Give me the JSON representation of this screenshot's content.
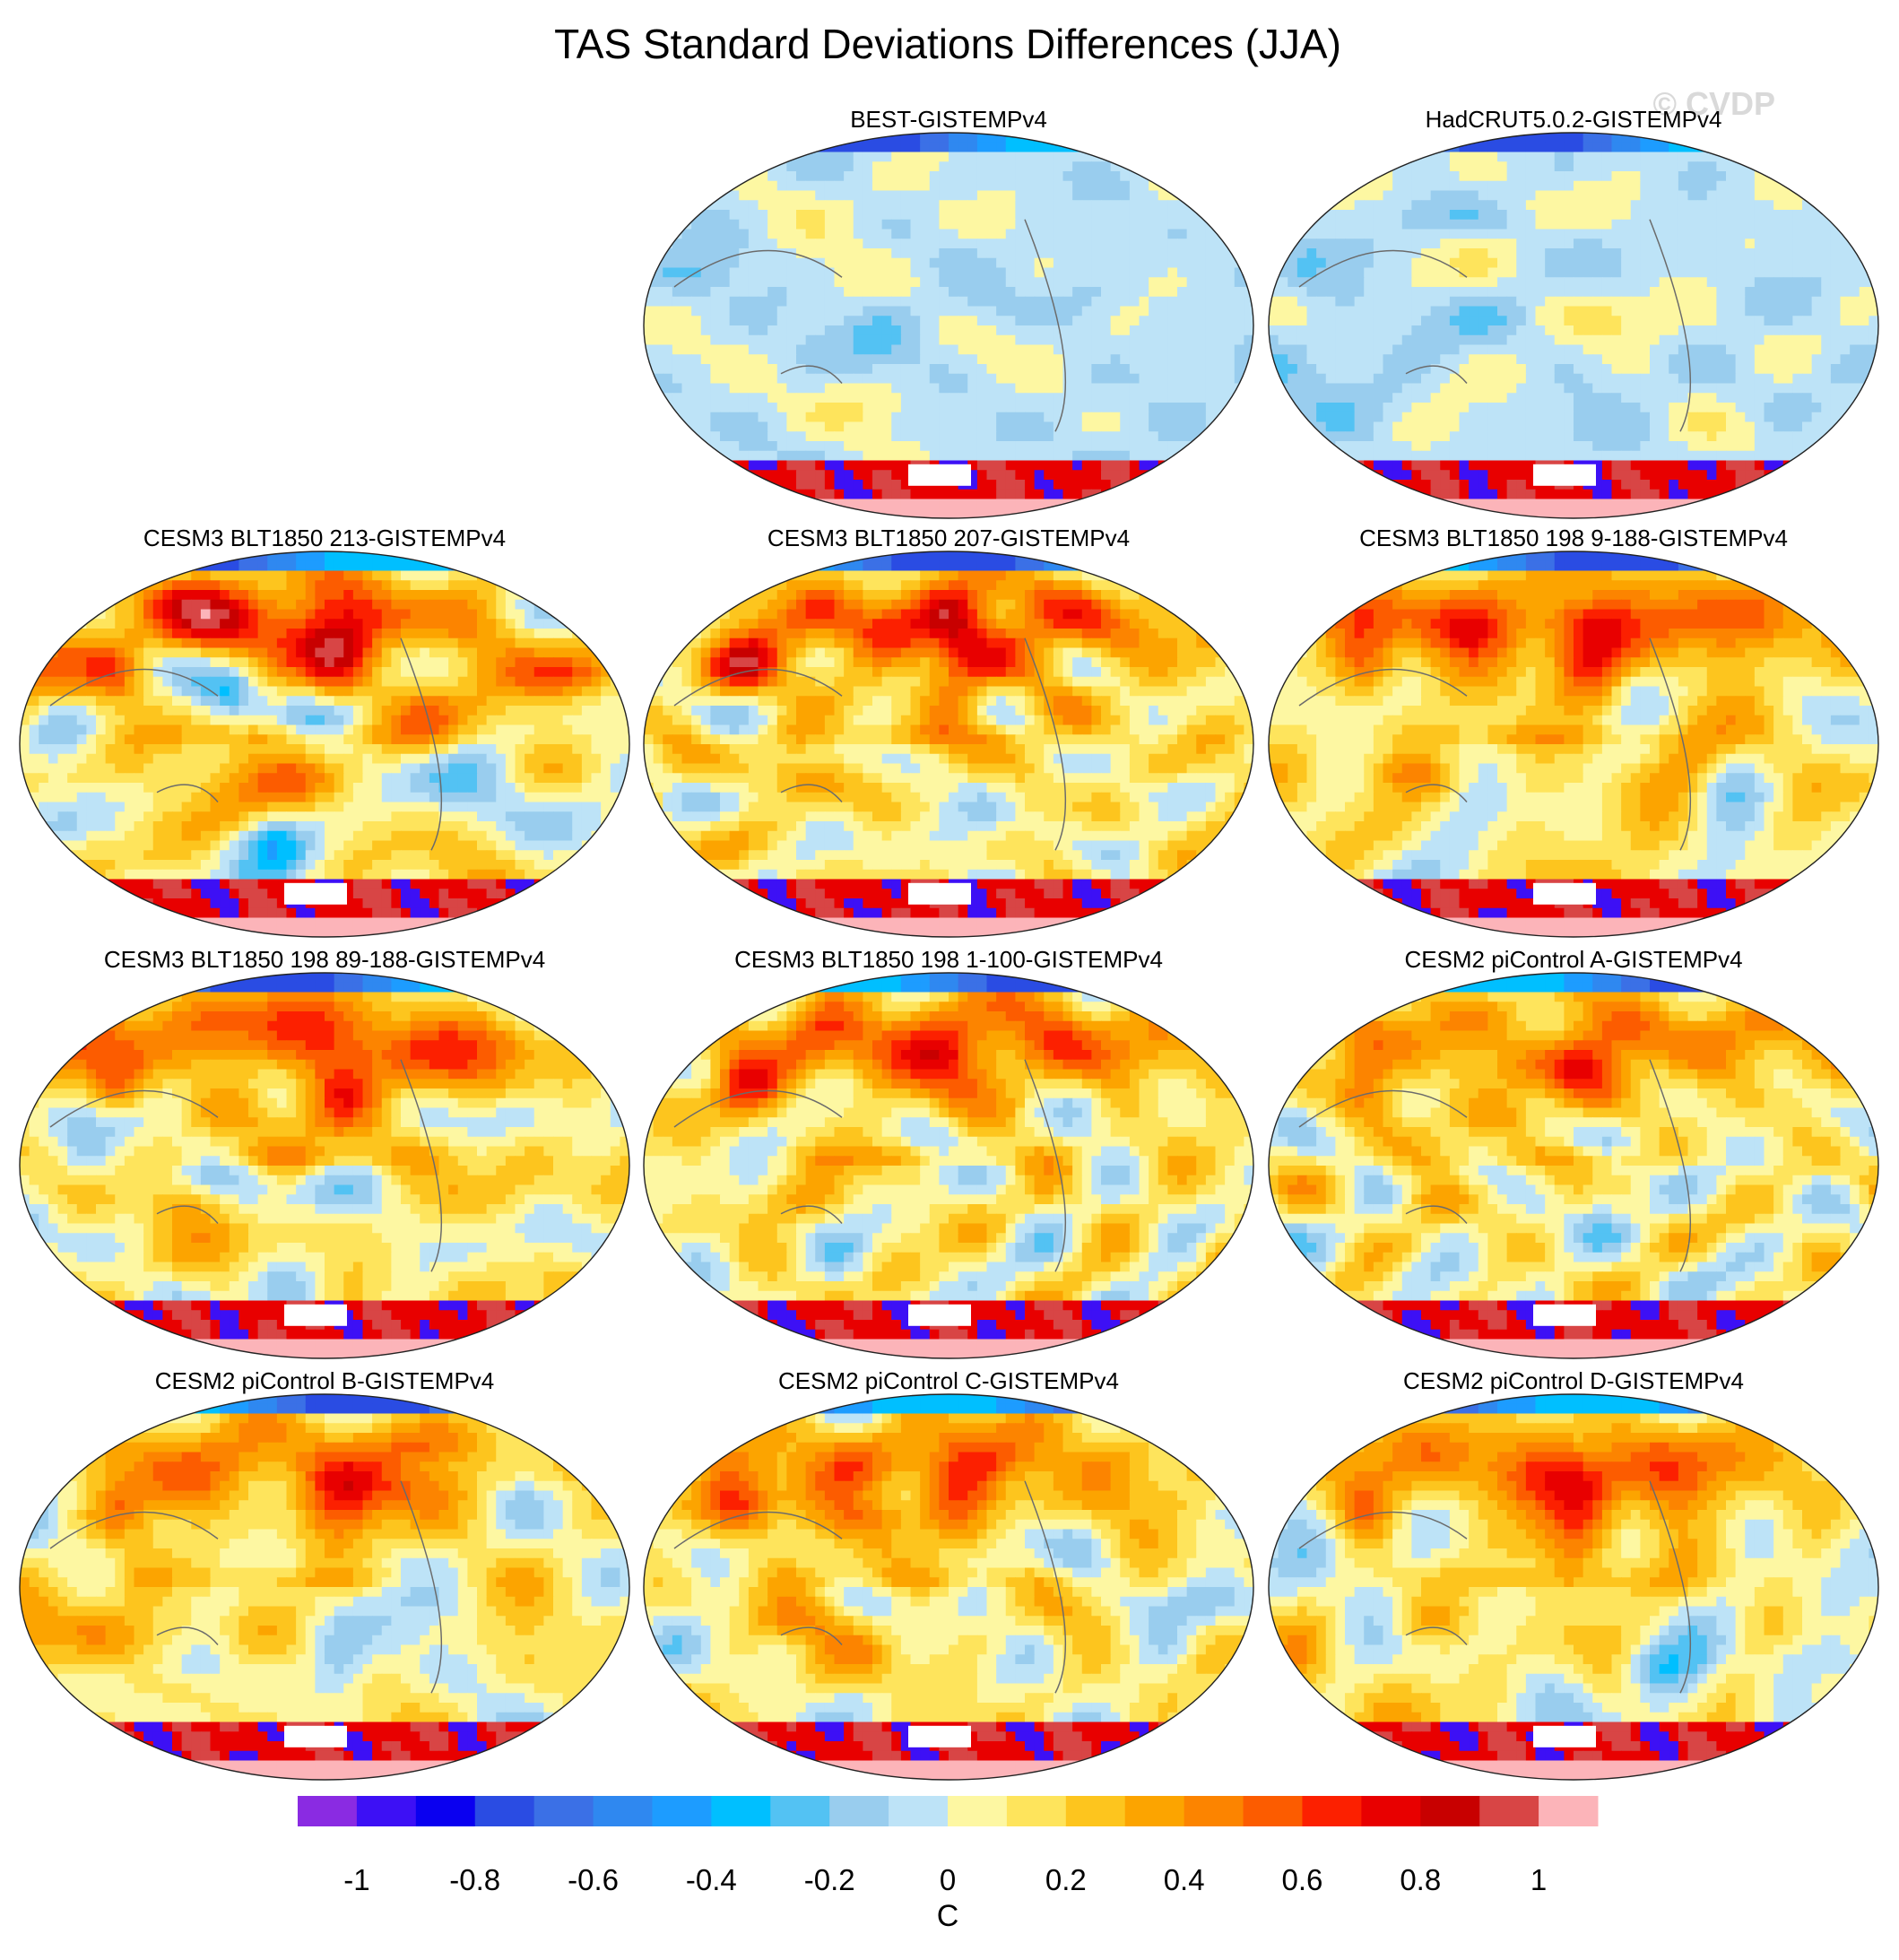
{
  "chart_data": {
    "type": "heatmap",
    "title": "TAS Standard Deviations Differences (JJA)",
    "watermark": "© CVDP",
    "projection": "global map",
    "panels": [
      {
        "title": "BEST-GISTEMPv4",
        "pattern": "obs",
        "strength": 0.55,
        "seed": 11
      },
      {
        "title": "HadCRUT5.0.2-GISTEMPv4",
        "pattern": "obs",
        "strength": 0.5,
        "seed": 23
      },
      {
        "title": "CESM3 BLT1850 213-GISTEMPv4",
        "pattern": "model",
        "strength": 1.0,
        "seed": 37
      },
      {
        "title": "CESM3 BLT1850 207-GISTEMPv4",
        "pattern": "model",
        "strength": 1.0,
        "seed": 41
      },
      {
        "title": "CESM3 BLT1850 198 9-188-GISTEMPv4",
        "pattern": "model",
        "strength": 1.0,
        "seed": 53
      },
      {
        "title": "CESM3 BLT1850 198 89-188-GISTEMPv4",
        "pattern": "model",
        "strength": 1.0,
        "seed": 67
      },
      {
        "title": "CESM3 BLT1850 198 1-100-GISTEMPv4",
        "pattern": "model",
        "strength": 1.0,
        "seed": 71
      },
      {
        "title": "CESM2 piControl A-GISTEMPv4",
        "pattern": "model",
        "strength": 0.85,
        "seed": 83
      },
      {
        "title": "CESM2 piControl B-GISTEMPv4",
        "pattern": "model",
        "strength": 0.85,
        "seed": 97
      },
      {
        "title": "CESM2 piControl C-GISTEMPv4",
        "pattern": "model",
        "strength": 0.85,
        "seed": 101
      },
      {
        "title": "CESM2 piControl D-GISTEMPv4",
        "pattern": "model",
        "strength": 0.85,
        "seed": 113
      }
    ],
    "colorbar": {
      "label": "C",
      "min": -1.1,
      "max": 1.1,
      "step": 0.1,
      "tick_values": [
        -1,
        -0.8,
        -0.6,
        -0.4,
        -0.2,
        0,
        0.2,
        0.4,
        0.6,
        0.8,
        1
      ],
      "tick_labels": [
        "-1",
        "-0.8",
        "-0.6",
        "-0.4",
        "-0.2",
        "0",
        "0.2",
        "0.4",
        "0.6",
        "0.8",
        "1"
      ],
      "colors": [
        "#8a2be2",
        "#3d10f5",
        "#0a00f0",
        "#2a4ce3",
        "#3b70e6",
        "#2f88f0",
        "#1d9cff",
        "#00bfff",
        "#53c2f3",
        "#99cdee",
        "#bde3f7",
        "#fdf7a2",
        "#fee45c",
        "#fdc51e",
        "#fca400",
        "#fc8400",
        "#fc5c00",
        "#fc2000",
        "#e80000",
        "#c80000",
        "#d84545",
        "#fcb4b9"
      ]
    }
  }
}
